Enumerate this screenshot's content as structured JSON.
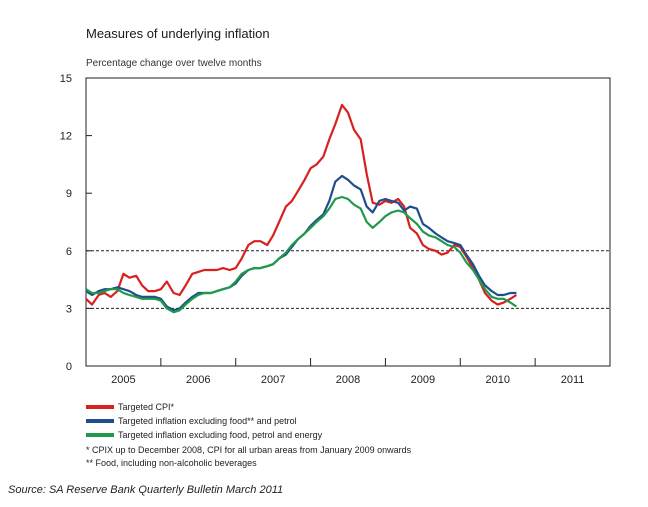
{
  "chart_data": {
    "type": "line",
    "title": "Measures of underlying inflation",
    "subtitle": "Percentage change over twelve months",
    "xlabel": "",
    "ylabel": "",
    "ylim": [
      0,
      15
    ],
    "yticks": [
      0,
      3,
      6,
      9,
      12,
      15
    ],
    "xlim": [
      2005.0,
      2012.0
    ],
    "xticks": [
      "2005",
      "2006",
      "2007",
      "2008",
      "2009",
      "2010",
      "2011"
    ],
    "reference_lines": [
      3,
      6
    ],
    "grid": false,
    "legend_position": "bottom",
    "series": [
      {
        "name": "Targeted CPI*",
        "color": "#d92020",
        "x": [
          2005.0,
          2005.08,
          2005.17,
          2005.25,
          2005.33,
          2005.42,
          2005.5,
          2005.58,
          2005.67,
          2005.75,
          2005.83,
          2005.92,
          2006.0,
          2006.08,
          2006.17,
          2006.25,
          2006.33,
          2006.42,
          2006.5,
          2006.58,
          2006.67,
          2006.75,
          2006.83,
          2006.92,
          2007.0,
          2007.08,
          2007.17,
          2007.25,
          2007.33,
          2007.42,
          2007.5,
          2007.58,
          2007.67,
          2007.75,
          2007.83,
          2007.92,
          2008.0,
          2008.08,
          2008.17,
          2008.25,
          2008.33,
          2008.42,
          2008.5,
          2008.58,
          2008.67,
          2008.75,
          2008.83,
          2008.92,
          2009.0,
          2009.08,
          2009.17,
          2009.25,
          2009.33,
          2009.42,
          2009.5,
          2009.58,
          2009.67,
          2009.75,
          2009.83,
          2009.92,
          2010.0,
          2010.08,
          2010.17,
          2010.25,
          2010.33,
          2010.42,
          2010.5,
          2010.58,
          2010.67,
          2010.75
        ],
        "values": [
          3.5,
          3.2,
          3.7,
          3.8,
          3.6,
          3.9,
          4.8,
          4.6,
          4.7,
          4.2,
          3.9,
          3.9,
          4.0,
          4.4,
          3.8,
          3.7,
          4.2,
          4.8,
          4.9,
          5.0,
          5.0,
          5.0,
          5.1,
          5.0,
          5.1,
          5.6,
          6.3,
          6.5,
          6.5,
          6.3,
          6.8,
          7.5,
          8.3,
          8.6,
          9.1,
          9.7,
          10.3,
          10.5,
          10.9,
          11.8,
          12.6,
          13.6,
          13.2,
          12.3,
          11.8,
          10.0,
          8.5,
          8.4,
          8.6,
          8.5,
          8.7,
          8.3,
          7.2,
          6.9,
          6.3,
          6.1,
          6.0,
          5.8,
          5.9,
          6.3,
          6.2,
          5.7,
          5.1,
          4.5,
          3.8,
          3.4,
          3.2,
          3.3,
          3.5,
          3.7
        ]
      },
      {
        "name": "Targeted inflation excluding food** and petrol",
        "color": "#1f4e8c",
        "x": [
          2005.0,
          2005.08,
          2005.17,
          2005.25,
          2005.33,
          2005.42,
          2005.5,
          2005.58,
          2005.67,
          2005.75,
          2005.83,
          2005.92,
          2006.0,
          2006.08,
          2006.17,
          2006.25,
          2006.33,
          2006.42,
          2006.5,
          2006.58,
          2006.67,
          2006.75,
          2006.83,
          2006.92,
          2007.0,
          2007.08,
          2007.17,
          2007.25,
          2007.33,
          2007.42,
          2007.5,
          2007.58,
          2007.67,
          2007.75,
          2007.83,
          2007.92,
          2008.0,
          2008.08,
          2008.17,
          2008.25,
          2008.33,
          2008.42,
          2008.5,
          2008.58,
          2008.67,
          2008.75,
          2008.83,
          2008.92,
          2009.0,
          2009.08,
          2009.17,
          2009.25,
          2009.33,
          2009.42,
          2009.5,
          2009.58,
          2009.67,
          2009.75,
          2009.83,
          2009.92,
          2010.0,
          2010.08,
          2010.17,
          2010.25,
          2010.33,
          2010.42,
          2010.5,
          2010.58,
          2010.67,
          2010.75
        ],
        "values": [
          3.9,
          3.7,
          3.9,
          4.0,
          4.0,
          4.1,
          4.0,
          3.9,
          3.7,
          3.6,
          3.6,
          3.6,
          3.5,
          3.1,
          2.9,
          3.0,
          3.3,
          3.6,
          3.8,
          3.8,
          3.8,
          3.9,
          4.0,
          4.1,
          4.3,
          4.7,
          5.0,
          5.1,
          5.1,
          5.2,
          5.3,
          5.6,
          5.8,
          6.2,
          6.6,
          6.9,
          7.3,
          7.6,
          7.9,
          8.6,
          9.6,
          9.9,
          9.7,
          9.4,
          9.2,
          8.3,
          8.0,
          8.6,
          8.7,
          8.6,
          8.5,
          8.1,
          8.3,
          8.2,
          7.4,
          7.2,
          6.9,
          6.7,
          6.5,
          6.4,
          6.3,
          5.8,
          5.3,
          4.7,
          4.2,
          3.9,
          3.7,
          3.7,
          3.8,
          3.8
        ]
      },
      {
        "name": "Targeted inflation excluding food, petrol and energy",
        "color": "#1f9a4a",
        "x": [
          2005.0,
          2005.08,
          2005.17,
          2005.25,
          2005.33,
          2005.42,
          2005.5,
          2005.58,
          2005.67,
          2005.75,
          2005.83,
          2005.92,
          2006.0,
          2006.08,
          2006.17,
          2006.25,
          2006.33,
          2006.42,
          2006.5,
          2006.58,
          2006.67,
          2006.75,
          2006.83,
          2006.92,
          2007.0,
          2007.08,
          2007.17,
          2007.25,
          2007.33,
          2007.42,
          2007.5,
          2007.58,
          2007.67,
          2007.75,
          2007.83,
          2007.92,
          2008.0,
          2008.08,
          2008.17,
          2008.25,
          2008.33,
          2008.42,
          2008.5,
          2008.58,
          2008.67,
          2008.75,
          2008.83,
          2008.92,
          2009.0,
          2009.08,
          2009.17,
          2009.25,
          2009.33,
          2009.42,
          2009.5,
          2009.58,
          2009.67,
          2009.75,
          2009.83,
          2009.92,
          2010.0,
          2010.08,
          2010.17,
          2010.25,
          2010.33,
          2010.42,
          2010.5,
          2010.58,
          2010.67,
          2010.75
        ],
        "values": [
          4.0,
          3.8,
          3.8,
          3.9,
          4.0,
          4.0,
          3.8,
          3.7,
          3.6,
          3.5,
          3.5,
          3.5,
          3.4,
          3.0,
          2.8,
          2.9,
          3.2,
          3.5,
          3.7,
          3.8,
          3.8,
          3.9,
          4.0,
          4.1,
          4.4,
          4.8,
          5.0,
          5.1,
          5.1,
          5.2,
          5.3,
          5.6,
          5.9,
          6.3,
          6.6,
          6.9,
          7.2,
          7.5,
          7.8,
          8.2,
          8.7,
          8.8,
          8.7,
          8.4,
          8.2,
          7.5,
          7.2,
          7.5,
          7.8,
          8.0,
          8.1,
          8.0,
          7.7,
          7.4,
          7.0,
          6.8,
          6.7,
          6.5,
          6.3,
          6.2,
          5.9,
          5.4,
          5.0,
          4.5,
          4.0,
          3.6,
          3.5,
          3.5,
          3.3,
          3.1
        ]
      }
    ]
  },
  "notes": [
    "* CPIX up to December 2008, CPI for all urban areas from January 2009 onwards",
    "** Food, including non-alcoholic beverages"
  ],
  "source": "Source:  SA Reserve Bank Quarterly Bulletin March 2011"
}
